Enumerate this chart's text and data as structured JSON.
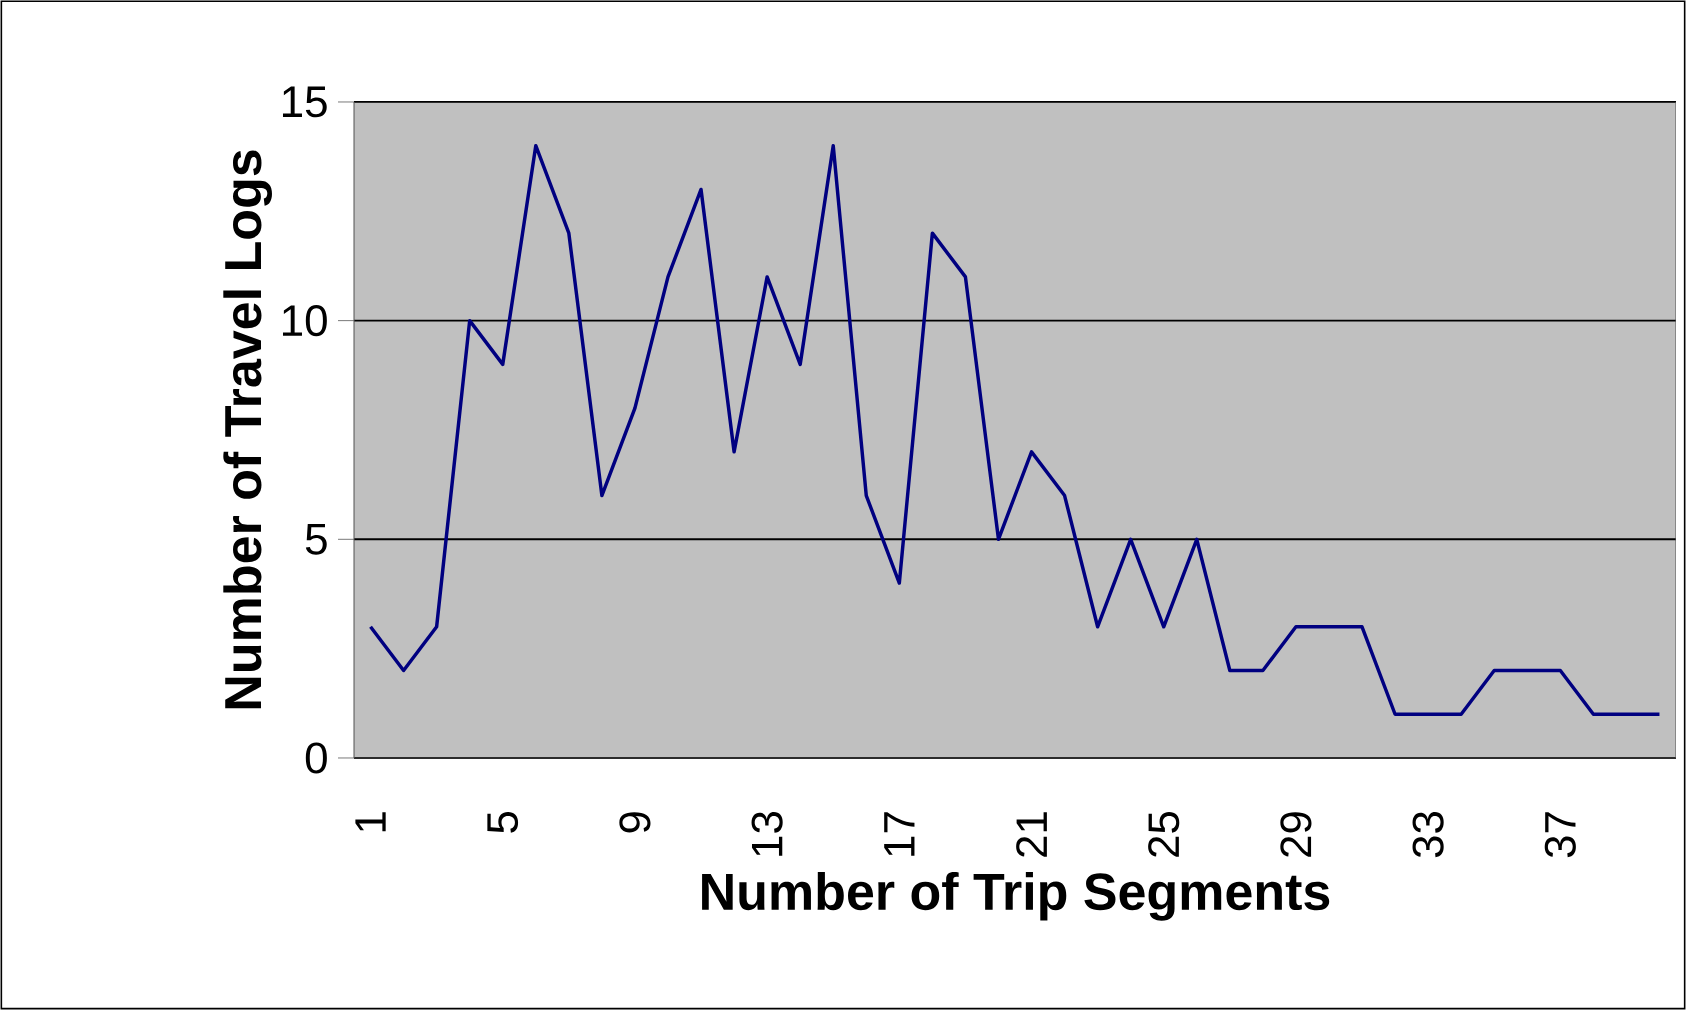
{
  "chart_data": {
    "type": "line",
    "xlabel": "Number of Trip Segments",
    "ylabel": "Number of Travel Logs",
    "categories": [
      "1",
      null,
      null,
      null,
      "5",
      null,
      null,
      null,
      "9",
      null,
      null,
      null,
      "13",
      null,
      null,
      null,
      "17",
      null,
      null,
      null,
      "21",
      null,
      null,
      null,
      "25",
      null,
      null,
      null,
      "29",
      null,
      null,
      null,
      "33",
      null,
      null,
      null,
      "37",
      null,
      null,
      null
    ],
    "values": [
      3,
      2,
      3,
      10,
      9,
      14,
      12,
      6,
      8,
      11,
      13,
      7,
      11,
      9,
      14,
      6,
      4,
      12,
      11,
      5,
      7,
      6,
      3,
      5,
      3,
      5,
      2,
      2,
      3,
      3,
      3,
      1,
      1,
      1,
      2,
      2,
      2,
      1,
      1,
      1
    ],
    "color": "#000080",
    "ylim": [
      0,
      15
    ],
    "yticks": [
      0,
      5,
      10,
      15
    ],
    "grid": "y"
  }
}
